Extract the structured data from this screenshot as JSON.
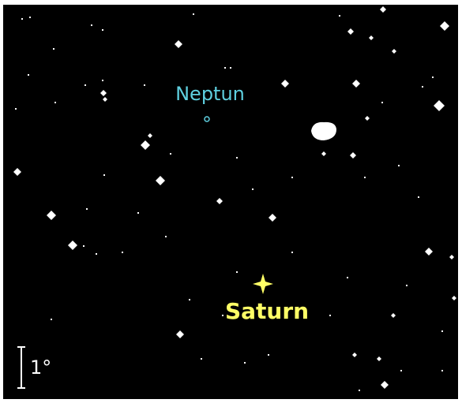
{
  "labels": {
    "neptune": "Neptun",
    "saturn": "Saturn",
    "scale": "1°"
  }
}
